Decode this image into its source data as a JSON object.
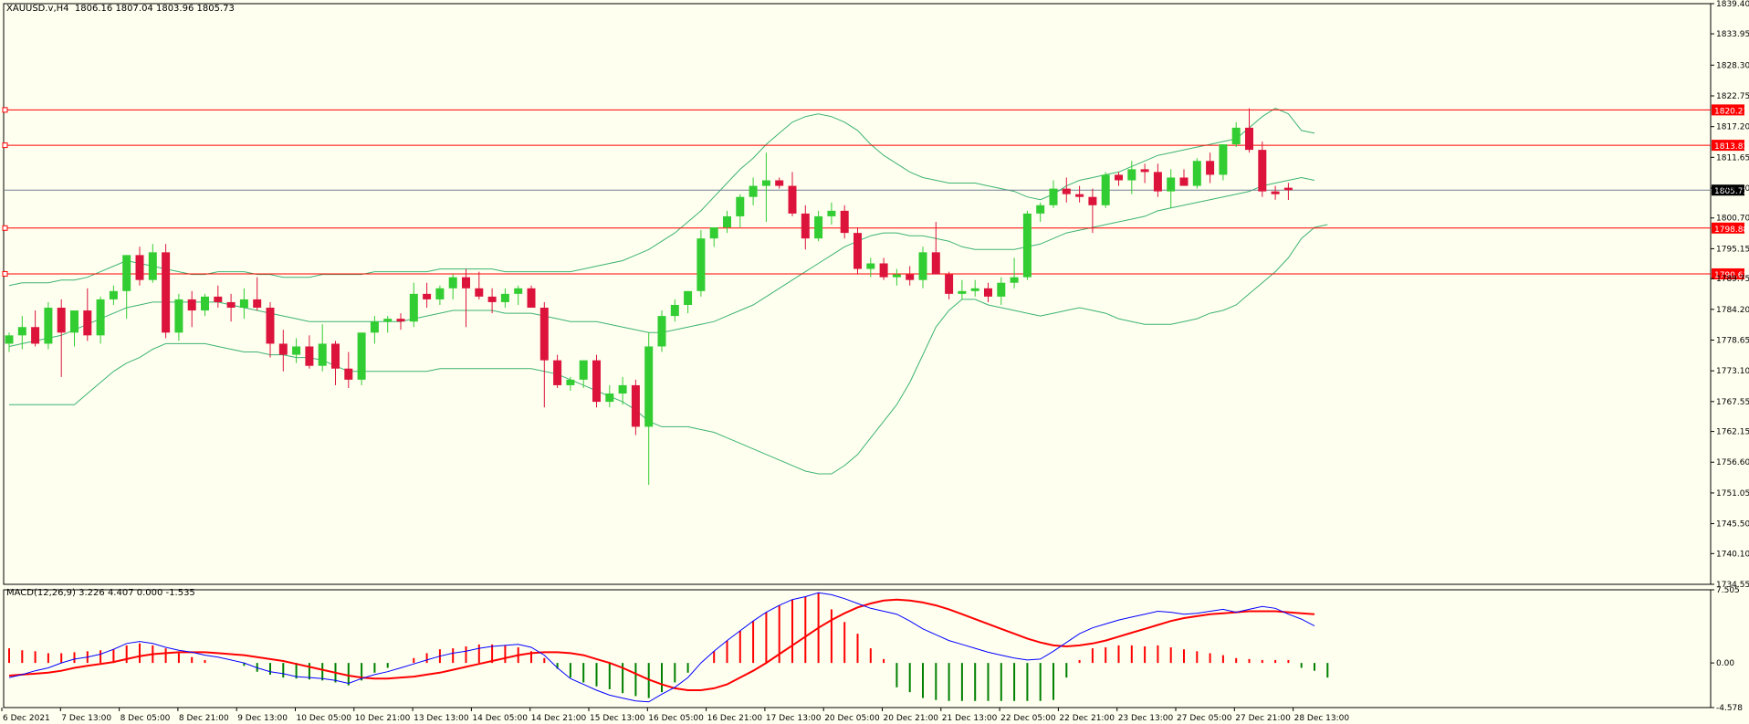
{
  "header": {
    "symbol": "XAUUSD.v,H4",
    "ohlc": "1806.16 1807.04 1803.96 1805.73"
  },
  "macd_header": {
    "label": "MACD(12,26,9)",
    "values": "3.226 4.407 0.000 -1.535"
  },
  "colors": {
    "background": "#fffff0",
    "bull": "#32cd32",
    "bear": "#dc143c",
    "bands": "#3cb371",
    "level_line": "#ff0000",
    "macd_line": "#0000ff",
    "signal_line": "#ff0000",
    "price_label_bg": "#ff0000",
    "current_label_bg": "#000000"
  },
  "chart_data": [
    {
      "type": "candlestick",
      "title": "XAUUSD.v,H4",
      "ylim": [
        1734.55,
        1839.4
      ],
      "price_ticks": [
        "1839.40",
        "1833.95",
        "1828.30",
        "1822.75",
        "1817.20",
        "1811.65",
        "1806.10",
        "1800.70",
        "1795.15",
        "1789.75",
        "1784.20",
        "1778.65",
        "1773.10",
        "1767.55",
        "1762.15",
        "1756.60",
        "1751.05",
        "1745.50",
        "1740.10",
        "1734.55"
      ],
      "x_labels": [
        "6 Dec 2021",
        "7 Dec 13:00",
        "8 Dec 05:00",
        "8 Dec 21:00",
        "9 Dec 13:00",
        "10 Dec 05:00",
        "10 Dec 21:00",
        "13 Dec 13:00",
        "14 Dec 05:00",
        "14 Dec 21:00",
        "15 Dec 13:00",
        "16 Dec 05:00",
        "16 Dec 21:00",
        "17 Dec 13:00",
        "20 Dec 05:00",
        "20 Dec 21:00",
        "21 Dec 13:00",
        "22 Dec 05:00",
        "22 Dec 21:00",
        "23 Dec 13:00",
        "27 Dec 05:00",
        "27 Dec 21:00",
        "28 Dec 13:00"
      ],
      "candles": [
        [
          1778.0,
          1780.0,
          1776.5,
          1779.5
        ],
        [
          1779.5,
          1783.0,
          1777.0,
          1781.0
        ],
        [
          1781.0,
          1784.0,
          1777.5,
          1778.0
        ],
        [
          1778.0,
          1785.5,
          1777.0,
          1784.5
        ],
        [
          1784.5,
          1786.0,
          1772.0,
          1780.0
        ],
        [
          1780.0,
          1784.0,
          1777.5,
          1784.0
        ],
        [
          1784.0,
          1788.0,
          1778.5,
          1779.5
        ],
        [
          1779.5,
          1786.5,
          1778.0,
          1786.0
        ],
        [
          1786.0,
          1788.5,
          1785.0,
          1787.5
        ],
        [
          1787.5,
          1794.0,
          1782.5,
          1794.0
        ],
        [
          1794.0,
          1795.5,
          1788.5,
          1789.5
        ],
        [
          1789.5,
          1796.0,
          1789.0,
          1794.5
        ],
        [
          1794.5,
          1796.0,
          1779.0,
          1780.0
        ],
        [
          1780.0,
          1787.0,
          1778.5,
          1786.0
        ],
        [
          1786.0,
          1787.5,
          1781.0,
          1784.0
        ],
        [
          1784.0,
          1787.0,
          1783.0,
          1786.5
        ],
        [
          1786.5,
          1788.5,
          1784.5,
          1785.5
        ],
        [
          1785.5,
          1787.0,
          1782.0,
          1784.5
        ],
        [
          1784.5,
          1788.0,
          1782.5,
          1786.0
        ],
        [
          1786.0,
          1790.0,
          1784.0,
          1784.5
        ],
        [
          1784.5,
          1785.5,
          1775.5,
          1778.0
        ],
        [
          1778.0,
          1780.5,
          1773.0,
          1776.0
        ],
        [
          1776.0,
          1779.0,
          1774.5,
          1777.5
        ],
        [
          1777.5,
          1779.5,
          1773.5,
          1774.0
        ],
        [
          1774.0,
          1781.5,
          1773.0,
          1778.0
        ],
        [
          1778.0,
          1778.5,
          1770.5,
          1773.5
        ],
        [
          1773.5,
          1776.5,
          1770.0,
          1771.5
        ],
        [
          1771.5,
          1780.0,
          1770.5,
          1780.0
        ],
        [
          1780.0,
          1783.0,
          1778.0,
          1782.0
        ],
        [
          1782.0,
          1783.0,
          1780.0,
          1782.5
        ],
        [
          1782.5,
          1783.5,
          1780.5,
          1782.0
        ],
        [
          1782.0,
          1789.0,
          1781.0,
          1787.0
        ],
        [
          1787.0,
          1789.0,
          1784.5,
          1786.0
        ],
        [
          1786.0,
          1788.5,
          1785.0,
          1788.0
        ],
        [
          1788.0,
          1790.5,
          1786.0,
          1790.0
        ],
        [
          1790.0,
          1791.5,
          1781.0,
          1788.0
        ],
        [
          1788.0,
          1791.0,
          1786.0,
          1786.5
        ],
        [
          1786.5,
          1788.0,
          1783.5,
          1785.5
        ],
        [
          1785.5,
          1788.0,
          1784.5,
          1787.0
        ],
        [
          1787.0,
          1788.5,
          1785.0,
          1788.0
        ],
        [
          1788.0,
          1788.5,
          1784.5,
          1784.5
        ],
        [
          1784.5,
          1785.5,
          1766.5,
          1775.0
        ],
        [
          1775.0,
          1776.0,
          1770.0,
          1770.5
        ],
        [
          1770.5,
          1772.0,
          1769.5,
          1771.5
        ],
        [
          1771.5,
          1774.5,
          1770.0,
          1775.0
        ],
        [
          1775.0,
          1776.0,
          1766.5,
          1767.5
        ],
        [
          1767.5,
          1770.5,
          1766.5,
          1769.0
        ],
        [
          1769.0,
          1772.0,
          1767.0,
          1770.5
        ],
        [
          1770.5,
          1771.5,
          1761.5,
          1763.0
        ],
        [
          1763.0,
          1780.0,
          1752.5,
          1777.5
        ],
        [
          1777.5,
          1784.0,
          1776.5,
          1783.0
        ],
        [
          1783.0,
          1786.0,
          1782.0,
          1785.0
        ],
        [
          1785.0,
          1787.0,
          1783.5,
          1787.5
        ],
        [
          1787.5,
          1798.5,
          1786.5,
          1797.0
        ],
        [
          1797.0,
          1799.0,
          1795.5,
          1799.0
        ],
        [
          1799.0,
          1802.0,
          1798.0,
          1801.0
        ],
        [
          1801.0,
          1805.0,
          1799.0,
          1804.5
        ],
        [
          1804.5,
          1808.0,
          1803.0,
          1806.5
        ],
        [
          1806.5,
          1812.5,
          1800.0,
          1807.5
        ],
        [
          1807.5,
          1808.0,
          1806.0,
          1806.5
        ],
        [
          1806.5,
          1809.0,
          1801.0,
          1801.5
        ],
        [
          1801.5,
          1803.0,
          1795.0,
          1797.0
        ],
        [
          1797.0,
          1802.0,
          1796.5,
          1801.0
        ],
        [
          1801.0,
          1803.5,
          1799.5,
          1802.0
        ],
        [
          1802.0,
          1803.0,
          1797.0,
          1798.0
        ],
        [
          1798.0,
          1799.0,
          1790.5,
          1791.5
        ],
        [
          1791.5,
          1793.5,
          1790.0,
          1792.5
        ],
        [
          1792.5,
          1793.5,
          1789.5,
          1790.0
        ],
        [
          1790.0,
          1791.5,
          1788.5,
          1790.5
        ],
        [
          1790.5,
          1792.0,
          1788.5,
          1789.5
        ],
        [
          1789.5,
          1795.5,
          1788.0,
          1794.5
        ],
        [
          1794.5,
          1800.0,
          1791.0,
          1790.5
        ],
        [
          1790.5,
          1791.0,
          1786.0,
          1787.0
        ],
        [
          1787.0,
          1789.5,
          1786.0,
          1787.5
        ],
        [
          1787.5,
          1789.5,
          1786.5,
          1788.0
        ],
        [
          1788.0,
          1789.0,
          1785.5,
          1786.5
        ],
        [
          1786.5,
          1790.0,
          1785.0,
          1789.0
        ],
        [
          1789.0,
          1793.5,
          1788.0,
          1790.0
        ],
        [
          1790.0,
          1802.0,
          1789.5,
          1801.5
        ],
        [
          1801.5,
          1803.5,
          1800.0,
          1803.0
        ],
        [
          1803.0,
          1807.5,
          1802.5,
          1806.0
        ],
        [
          1806.0,
          1808.0,
          1803.5,
          1805.0
        ],
        [
          1805.0,
          1806.5,
          1803.5,
          1804.5
        ],
        [
          1804.5,
          1806.0,
          1798.0,
          1803.0
        ],
        [
          1803.0,
          1809.0,
          1802.5,
          1808.5
        ],
        [
          1808.5,
          1809.0,
          1806.5,
          1807.5
        ],
        [
          1807.5,
          1811.0,
          1805.0,
          1809.5
        ],
        [
          1809.5,
          1810.5,
          1807.0,
          1809.0
        ],
        [
          1809.0,
          1810.5,
          1804.5,
          1805.5
        ],
        [
          1805.5,
          1809.5,
          1802.5,
          1808.0
        ],
        [
          1808.0,
          1809.5,
          1807.0,
          1806.5
        ],
        [
          1806.5,
          1811.5,
          1806.0,
          1811.0
        ],
        [
          1811.0,
          1812.5,
          1807.0,
          1808.5
        ],
        [
          1808.5,
          1814.0,
          1807.5,
          1814.0
        ],
        [
          1814.0,
          1818.0,
          1813.5,
          1817.0
        ],
        [
          1817.0,
          1820.5,
          1812.5,
          1813.0
        ],
        [
          1813.0,
          1814.5,
          1804.5,
          1805.5
        ],
        [
          1805.5,
          1806.5,
          1804.0,
          1805.0
        ],
        [
          1806.16,
          1807.04,
          1803.96,
          1805.73
        ]
      ],
      "bollinger_upper": [
        1788.5,
        1789,
        1789,
        1789,
        1789.5,
        1789.5,
        1790,
        1791,
        1792,
        1793,
        1792.5,
        1792,
        1791.5,
        1791,
        1790.5,
        1790.5,
        1791,
        1791,
        1791,
        1790.5,
        1790.5,
        1790,
        1790,
        1790,
        1790.5,
        1790.5,
        1790.5,
        1790.5,
        1791,
        1791,
        1791,
        1791,
        1791,
        1791.5,
        1791.5,
        1791.5,
        1791.5,
        1791.5,
        1791,
        1791,
        1791,
        1791,
        1791,
        1791,
        1791.5,
        1792,
        1792.5,
        1793,
        1794,
        1795,
        1796.5,
        1798,
        1800,
        1802,
        1804.5,
        1807,
        1809.5,
        1811.5,
        1814,
        1816,
        1818,
        1819,
        1819.5,
        1819,
        1818,
        1816.5,
        1814,
        1812,
        1810.5,
        1809,
        1808,
        1807.5,
        1807,
        1807,
        1807,
        1806.5,
        1806,
        1805.5,
        1804.5,
        1804,
        1805,
        1806.5,
        1807.5,
        1808,
        1808.5,
        1809,
        1810,
        1811,
        1812,
        1812.5,
        1813,
        1813.5,
        1814,
        1814.5,
        1815,
        1817,
        1819,
        1820.5,
        1819.5,
        1816.5,
        1816
      ],
      "bollinger_middle": [
        1777.5,
        1778,
        1778.5,
        1779,
        1779.5,
        1780.5,
        1781.5,
        1782.5,
        1783.5,
        1784.5,
        1785,
        1785.5,
        1785.5,
        1785.5,
        1785.5,
        1785.5,
        1785.5,
        1785,
        1784.5,
        1784,
        1783.5,
        1783,
        1782.5,
        1782,
        1782,
        1782,
        1782,
        1782,
        1782,
        1782,
        1782,
        1782.5,
        1783,
        1783.5,
        1784,
        1784,
        1784,
        1784,
        1783.5,
        1783.5,
        1783.5,
        1783,
        1782.5,
        1782,
        1782,
        1782,
        1781.5,
        1781,
        1780.5,
        1780,
        1780,
        1780.5,
        1781,
        1781.5,
        1782,
        1783,
        1784,
        1785,
        1786.5,
        1788,
        1789.5,
        1791,
        1792.5,
        1794,
        1795.5,
        1796.5,
        1797.5,
        1798,
        1798,
        1797.5,
        1797.5,
        1797,
        1796.5,
        1795.5,
        1795,
        1795,
        1795,
        1795,
        1795.5,
        1796,
        1797,
        1798,
        1798.5,
        1799,
        1799.5,
        1800,
        1800.5,
        1801,
        1802,
        1802.5,
        1803,
        1803.5,
        1804,
        1804.5,
        1805,
        1805.5,
        1806.5,
        1807,
        1807.5,
        1808,
        1807.5
      ],
      "bollinger_lower": [
        1767,
        1767,
        1767,
        1767,
        1767,
        1767,
        1769,
        1771,
        1773,
        1774.5,
        1775.5,
        1777,
        1778,
        1778,
        1778,
        1778,
        1777.5,
        1777,
        1776.5,
        1776.5,
        1776,
        1776,
        1775.5,
        1775.5,
        1775,
        1774,
        1773,
        1773,
        1773,
        1773,
        1773,
        1773,
        1773,
        1773.5,
        1773.5,
        1773.5,
        1773.5,
        1773.5,
        1773.5,
        1773.5,
        1773.5,
        1773,
        1772.5,
        1771.5,
        1770.5,
        1769.5,
        1768.5,
        1767.5,
        1766,
        1764,
        1763,
        1763,
        1763,
        1762.5,
        1762,
        1761,
        1760,
        1759,
        1758,
        1757,
        1756,
        1755,
        1754.5,
        1754.5,
        1756,
        1758,
        1761,
        1764,
        1767,
        1771,
        1776,
        1781,
        1784,
        1786,
        1786,
        1785,
        1784.5,
        1784,
        1783.5,
        1783,
        1783.5,
        1784,
        1784.5,
        1784,
        1783.5,
        1782.5,
        1782,
        1781.5,
        1781.5,
        1781.5,
        1782,
        1782.5,
        1783.5,
        1784,
        1785,
        1787,
        1789,
        1791,
        1793.5,
        1797,
        1799,
        1799.5
      ],
      "horizontal_levels": [
        "1820.21",
        "1813.83",
        "1798.88",
        "1790.61"
      ],
      "current_price": "1805.73"
    },
    {
      "type": "bar",
      "title": "MACD(12,26,9)",
      "ylim": [
        -4.578,
        7.505
      ],
      "y_ticks": [
        "7.505",
        "0.00",
        "-4.578"
      ],
      "macd": [
        -1.5,
        -1.2,
        -0.8,
        -0.5,
        0,
        0.4,
        0.6,
        0.9,
        1.4,
        2.0,
        2.2,
        2.0,
        1.6,
        1.3,
        1.1,
        0.8,
        0.6,
        0.3,
        0,
        -0.5,
        -0.9,
        -1.1,
        -1.4,
        -1.5,
        -1.6,
        -1.8,
        -2.1,
        -1.6,
        -1.2,
        -0.9,
        -0.5,
        -0.1,
        0.3,
        0.7,
        1.0,
        1.2,
        1.5,
        1.7,
        1.8,
        1.9,
        1.6,
        0.8,
        -0.5,
        -1.6,
        -2.2,
        -2.8,
        -3.3,
        -3.6,
        -3.9,
        -4.0,
        -3.2,
        -2.5,
        -1.5,
        0,
        1.2,
        2.3,
        3.3,
        4.3,
        5.2,
        5.9,
        6.5,
        6.8,
        7.2,
        7.0,
        6.6,
        6.1,
        5.6,
        5.3,
        5.0,
        4.3,
        3.5,
        2.9,
        2.3,
        1.9,
        1.5,
        1.1,
        0.8,
        0.5,
        0.3,
        0.4,
        1.2,
        2.1,
        3.0,
        3.6,
        4.0,
        4.4,
        4.7,
        5.0,
        5.3,
        5.2,
        5.0,
        5.1,
        5.3,
        5.5,
        5.2,
        5.5,
        5.8,
        5.6,
        5.0,
        4.5,
        3.8
      ],
      "signal": [
        -1.3,
        -1.2,
        -1.1,
        -1.0,
        -0.8,
        -0.5,
        -0.3,
        -0.1,
        0.1,
        0.4,
        0.7,
        0.9,
        1.0,
        1.1,
        1.1,
        1.1,
        1.0,
        0.9,
        0.8,
        0.6,
        0.4,
        0.2,
        -0.1,
        -0.4,
        -0.7,
        -1.0,
        -1.3,
        -1.5,
        -1.6,
        -1.6,
        -1.5,
        -1.4,
        -1.2,
        -1.0,
        -0.7,
        -0.4,
        -0.1,
        0.2,
        0.5,
        0.8,
        1.0,
        1.1,
        1.1,
        1.0,
        0.8,
        0.4,
        0,
        -0.5,
        -1.1,
        -1.7,
        -2.2,
        -2.6,
        -2.8,
        -2.8,
        -2.6,
        -2.2,
        -1.5,
        -0.8,
        0,
        0.9,
        1.8,
        2.7,
        3.6,
        4.4,
        5.1,
        5.7,
        6.1,
        6.4,
        6.5,
        6.4,
        6.2,
        5.9,
        5.5,
        5.0,
        4.5,
        4.0,
        3.5,
        3.0,
        2.5,
        2.1,
        1.8,
        1.7,
        1.8,
        2.0,
        2.3,
        2.7,
        3.1,
        3.5,
        3.9,
        4.3,
        4.6,
        4.8,
        5.0,
        5.1,
        5.2,
        5.3,
        5.3,
        5.3,
        5.2,
        5.1,
        5.0
      ],
      "histogram": [
        1.5,
        1.3,
        1.2,
        1.0,
        1.0,
        1.1,
        1.2,
        1.3,
        1.4,
        1.8,
        2.0,
        1.8,
        1.5,
        1.0,
        0.6,
        0.3,
        0,
        0,
        -0.3,
        -0.9,
        -1.2,
        -1.5,
        -1.6,
        -1.7,
        -1.8,
        -2.0,
        -2.3,
        -1.8,
        -1.0,
        -0.5,
        0,
        0.5,
        1.0,
        1.4,
        1.5,
        1.7,
        1.9,
        1.9,
        1.8,
        1.6,
        1.2,
        0.5,
        -0.6,
        -1.5,
        -2.0,
        -2.4,
        -2.7,
        -3.1,
        -3.4,
        -3.6,
        -3.0,
        -2.0,
        -1.0,
        0,
        1.2,
        2.3,
        3.3,
        4.3,
        5.2,
        5.9,
        6.5,
        6.8,
        7.2,
        5.5,
        4.2,
        3.0,
        1.5,
        0.4,
        -2.5,
        -3.0,
        -3.6,
        -3.8,
        -3.9,
        -3.9,
        -3.9,
        -3.9,
        -3.9,
        -3.9,
        -3.9,
        -3.9,
        -3.8,
        -1.5,
        0.3,
        1.5,
        1.6,
        1.8,
        1.8,
        1.7,
        1.8,
        1.6,
        1.4,
        1.2,
        1.0,
        0.8,
        0.5,
        0.4,
        0.3,
        0.3,
        0.3,
        -0.5,
        -0.8,
        -1.5
      ]
    }
  ]
}
